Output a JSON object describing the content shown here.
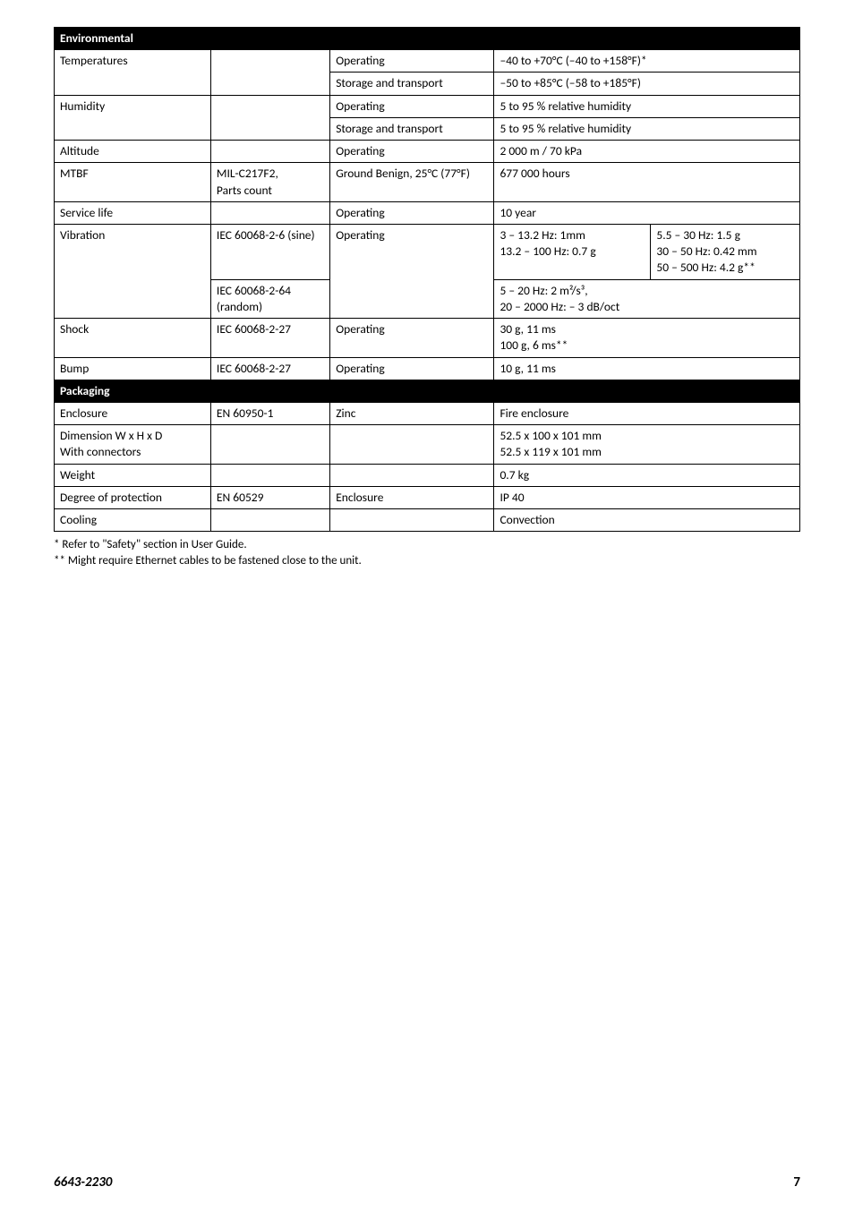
{
  "sections": {
    "environmental": "Environmental",
    "packaging": "Packaging"
  },
  "rows": {
    "temperatures": {
      "label": "Temperatures",
      "op_label": "Operating",
      "op_val": "–40 to +70°C (–40 to +158°F)*",
      "st_label": "Storage and transport",
      "st_val": "–50 to +85°C (–58 to +185°F)"
    },
    "humidity": {
      "label": "Humidity",
      "op_label": "Operating",
      "op_val": "5 to 95 % relative humidity",
      "st_label": "Storage and transport",
      "st_val": "5 to 95 % relative humidity"
    },
    "altitude": {
      "label": "Altitude",
      "cond": "Operating",
      "val": "2 000 m / 70 kPa"
    },
    "mtbf": {
      "label": "MTBF",
      "std": "MIL-C217F2,\nParts count",
      "cond": "Ground Benign, 25°C (77°F)",
      "val": "677 000 hours"
    },
    "servicelife": {
      "label": "Service life",
      "cond": "Operating",
      "val": "10 year"
    },
    "vibration": {
      "label": "Vibration",
      "std1": "IEC 60068-2-6 (sine)",
      "cond1": "Operating",
      "val1a": "3 – 13.2 Hz: 1mm\n13.2 – 100 Hz: 0.7 g",
      "val1b": "5.5 – 30 Hz: 1.5 g\n30 – 50 Hz: 0.42 mm\n50 – 500 Hz: 4.2 g**",
      "std2": "IEC 60068-2-64 (random)",
      "val2": "5 – 20 Hz: 2 m²/s³,\n20 – 2000 Hz: – 3 dB/oct"
    },
    "shock": {
      "label": "Shock",
      "std": "IEC 60068-2-27",
      "cond": "Operating",
      "val": "30 g, 11 ms\n100 g, 6 ms**"
    },
    "bump": {
      "label": "Bump",
      "std": "IEC 60068-2-27",
      "cond": "Operating",
      "val": "10 g, 11 ms"
    },
    "enclosure": {
      "label": "Enclosure",
      "std": "EN 60950-1",
      "cond": "Zinc",
      "val": "Fire enclosure"
    },
    "dimension": {
      "label": "Dimension W x H x D\nWith connectors",
      "val": "52.5 x 100 x 101 mm\n52.5 x 119 x 101 mm"
    },
    "weight": {
      "label": "Weight",
      "val": "0.7 kg"
    },
    "protection": {
      "label": "Degree of protection",
      "std": "EN 60529",
      "cond": "Enclosure",
      "val": "IP 40"
    },
    "cooling": {
      "label": "Cooling",
      "val": "Convection"
    }
  },
  "footnotes": {
    "f1": "* Refer to \"Safety\" section in User Guide.",
    "f2": "** Might require Ethernet cables to be fastened close to the unit."
  },
  "footer": {
    "doc": "6643-2230",
    "page": "7"
  }
}
